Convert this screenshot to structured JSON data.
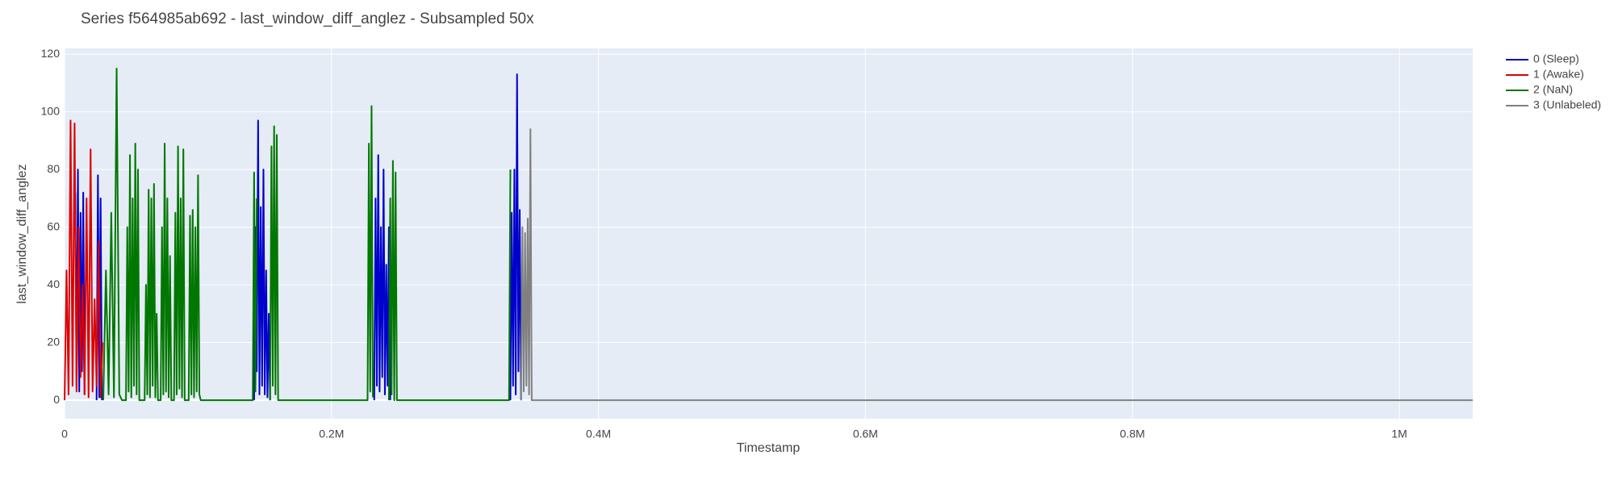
{
  "chart_data": {
    "type": "line",
    "title": "Series f564985ab692 - last_window_diff_anglez - Subsampled 50x",
    "x_label": "Timestamp",
    "y_label": "last_window_diff_anglez",
    "xlim": [
      0,
      1055000
    ],
    "ylim": [
      -6.4,
      122
    ],
    "xticks": [
      0,
      {
        "value": 200000,
        "label": "0.2M"
      },
      {
        "value": 400000,
        "label": "0.4M"
      },
      {
        "value": 600000,
        "label": "0.6M"
      },
      {
        "value": 800000,
        "label": "0.8M"
      },
      {
        "value": 1000000,
        "label": "1M"
      }
    ],
    "yticks": [
      0,
      20,
      40,
      60,
      80,
      100,
      120
    ],
    "grid": true,
    "legend": "right",
    "series": [
      {
        "name": "0 (Sleep)",
        "color": "#0000cc",
        "x": [
          8000,
          9000,
          10000,
          11000,
          12000,
          13000,
          14000,
          15000,
          null,
          24000,
          25000,
          26000,
          27000,
          28000,
          null,
          142000,
          143000,
          144000,
          145000,
          146000,
          147000,
          148000,
          149000,
          150000,
          151000,
          152000,
          153000,
          154000,
          null,
          232000,
          233000,
          234000,
          235000,
          236000,
          237000,
          238000,
          239000,
          240000,
          241000,
          242000,
          243000,
          244000,
          null,
          334000,
          335000,
          336000,
          337000,
          338000,
          339000,
          340000,
          341000,
          342000
        ],
        "values": [
          72,
          5,
          80,
          3,
          65,
          10,
          72,
          2,
          null,
          0,
          78,
          1,
          70,
          0,
          null,
          0,
          60,
          10,
          97,
          2,
          67,
          5,
          80,
          2,
          45,
          1,
          30,
          0,
          null,
          0,
          70,
          5,
          85,
          3,
          60,
          8,
          80,
          2,
          47,
          5,
          60,
          0,
          null,
          0,
          65,
          5,
          80,
          2,
          113,
          10,
          66,
          0
        ]
      },
      {
        "name": "1 (Awake)",
        "color": "#dd0000",
        "x": [
          0,
          1500,
          3000,
          4500,
          6000,
          7500,
          9000,
          10500,
          12000,
          13500,
          15000,
          16500,
          18000,
          19500,
          21000,
          22500,
          24000,
          25500,
          27000,
          28500
        ],
        "values": [
          0,
          45,
          2,
          97,
          5,
          96,
          3,
          60,
          8,
          40,
          2,
          70,
          1,
          87,
          3,
          35,
          5,
          55,
          1,
          20
        ]
      },
      {
        "name": "2 (NaN)",
        "color": "#007700",
        "x": [
          29000,
          31000,
          33000,
          35000,
          37000,
          39000,
          41000,
          43000,
          46000,
          47000,
          48000,
          49000,
          50000,
          51000,
          52000,
          53000,
          54000,
          55000,
          56000,
          60000,
          61000,
          62000,
          63000,
          64000,
          65000,
          66000,
          67000,
          68000,
          69000,
          70000,
          72000,
          73000,
          74000,
          75000,
          76000,
          77000,
          78000,
          79000,
          80000,
          82000,
          83000,
          84000,
          85000,
          86000,
          87000,
          88000,
          89000,
          90000,
          93000,
          94000,
          95000,
          96000,
          97000,
          98000,
          99000,
          100000,
          101000,
          102000,
          141000,
          142000,
          143000,
          144000,
          null,
          154000,
          155000,
          156000,
          157000,
          158000,
          159000,
          160000,
          227000,
          228000,
          229000,
          230000,
          231000,
          null,
          243000,
          244000,
          245000,
          246000,
          247000,
          248000,
          249000,
          333000,
          334000
        ],
        "values": [
          0,
          45,
          2,
          65,
          1,
          115,
          2,
          0,
          0,
          60,
          3,
          85,
          1,
          70,
          5,
          89,
          2,
          80,
          0,
          0,
          40,
          2,
          73,
          1,
          70,
          5,
          75,
          1,
          30,
          0,
          0,
          60,
          2,
          89,
          3,
          70,
          1,
          50,
          0,
          0,
          65,
          2,
          88,
          4,
          70,
          1,
          87,
          0,
          0,
          64,
          2,
          66,
          1,
          60,
          3,
          78,
          2,
          0,
          0,
          79,
          3,
          70,
          null,
          0,
          88,
          5,
          95,
          2,
          92,
          0,
          0,
          89,
          3,
          102,
          1,
          null,
          0,
          70,
          2,
          83,
          0,
          79,
          0,
          0,
          80
        ]
      },
      {
        "name": "3 (Unlabeled)",
        "color": "#808080",
        "x": [
          342000,
          343000,
          344000,
          345000,
          346000,
          347000,
          348000,
          349000,
          350000,
          351000,
          1055000
        ],
        "values": [
          0,
          60,
          3,
          58,
          5,
          63,
          2,
          94,
          0,
          0,
          0
        ]
      }
    ]
  }
}
